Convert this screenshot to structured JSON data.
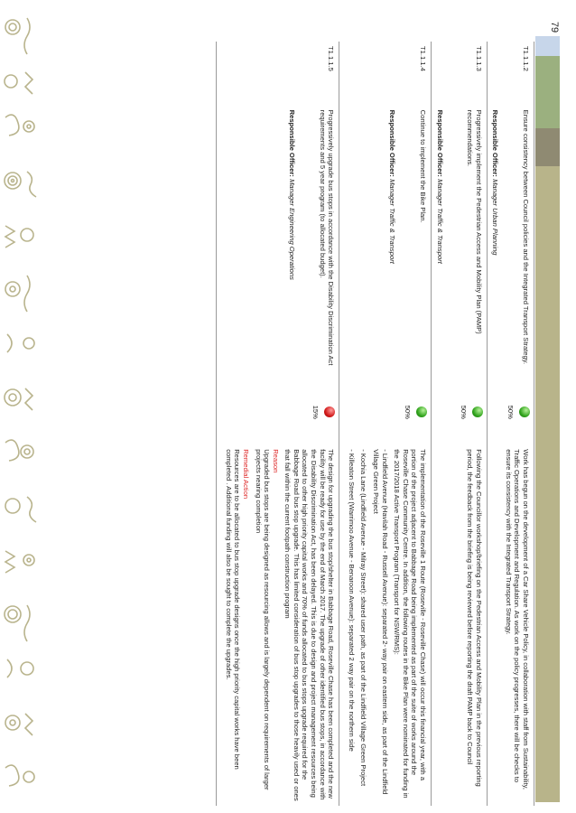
{
  "page_number": "79",
  "colors": {
    "green_strip": "#9bb07f",
    "dark_strip": "#8f8a72",
    "light_blue": "#c7d6ea",
    "olive_strip": "#b8b48a",
    "red": "#d22222",
    "green": "#2fa21b"
  },
  "rows": [
    {
      "id": "T1.1.1.2",
      "action": "Ensure consistency between Council policies and the Integrated Transport Strategy.",
      "resp_label": "Responsible Officer:",
      "resp_value": "Manager Urban Planning",
      "status": "green",
      "percent": "50%",
      "comment": "Work has begun on the development of a Car Share Vehicle Policy, in collaboration with staff from Sustainability, Traffic Operations and Development and Regulation. As work on the policy progresses, there will be checks to ensure its consistency with the Integrated Transport Strategy."
    },
    {
      "id": "T1.1.1.3",
      "action": "Progressively implement the Pedestrian Access and Mobility Plan (PAMP) recommendations.",
      "resp_label": "Responsible Officer:",
      "resp_value": "Manager Traffic & Transport",
      "status": "green",
      "percent": "50%",
      "comment": "Following the Councillor workshop/briefing on the Pedestrian Access and Mobility Plan in the previous reporting period, the feedback from the briefing is being reviewed before reporting the draft PAMP back to Council"
    },
    {
      "id": "T1.1.1.4",
      "action": "Continue to implement the Bike Plan.",
      "resp_label": "Responsible Officer:",
      "resp_value": "Manager Traffic & Transport",
      "status": "green",
      "percent": "50%",
      "comment": "The implementation of the Roseville 1 Route (Roseville - Roseville Chase) will occur this financial year, with a portion of the project adjacent to Babbage Road being implemented as part of the suite of works around the Roseville Chase Community Centre. In addition, the following routes in the Bike Plan were nominated for funding in the 2017/2018 Active Transport Program (Transport for NSW/RMS):",
      "comment_list": [
        "- Lindfield Avenue (Havilah Road - Russell Avenue): separated 2- way pair on eastern side, as part of the Lindfield Village Green Project",
        "- Kochia Lane (Lindfield Avenue - Milray Street): shared user path, as part of the Lindfield Village Green Project",
        "- Killeaton Street (Warrimoo Avenue - Benaroon Avenue): separated 2 way pair on the northern side"
      ]
    },
    {
      "id": "T1.1.1.5",
      "action": "Progressively upgrade bus stops in accordance with the Disability Discrimination Act requirements and 5 year program (to allocated budget).",
      "resp_label": "Responsible Officer:",
      "resp_value": "Manager Engineering Operations",
      "status": "red",
      "percent": "15%",
      "comment": "The design for upgrading the bus stop/shelter in Babbage Road, Roseville Chase has been completed and the new facility will be ready for use by the end of March 2017. The upgrade of other identified bus stops, in accordance with the Disability Discrimination Act, has been delayed. This is due to design and project management resources being allocated to other high priority capital works and 70% of funds allocated to bus stops upgrade required for the Babbage Road bus stop upgrade. This has limited consideration of bus stop upgrades to those heavily used or ones that fall within the current footpath construction program",
      "reason_label": "Reason",
      "reason": "Upgraded bus stops are being designed as resourcing allows and is largely dependent on requirements of larger projects nearing completion",
      "remedial_label": "Remedial Action",
      "remedial": "Resources are to be allocated to bus stop upgrade designs once the high priority capital works have been completed . Additional funding will also be sought to complete the upgrades."
    }
  ]
}
